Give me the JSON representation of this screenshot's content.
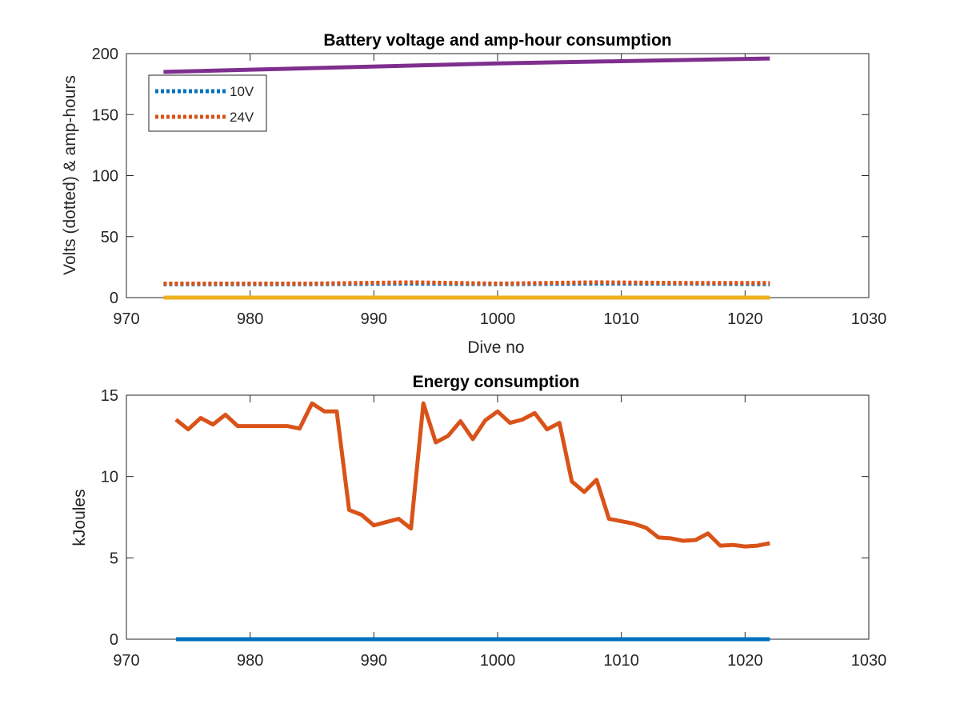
{
  "chart_data": [
    {
      "type": "line",
      "title": "Battery voltage and amp-hour consumption",
      "xlabel": "Dive no",
      "ylabel": "Volts (dotted) & amp-hours",
      "xlim": [
        970,
        1030
      ],
      "ylim": [
        0,
        200
      ],
      "xticks": [
        970,
        980,
        990,
        1000,
        1010,
        1020,
        1030
      ],
      "yticks": [
        0,
        50,
        100,
        150,
        200
      ],
      "legend_position": "top-left",
      "series": [
        {
          "name": "10V",
          "color": "#0072BD",
          "style": "dotted",
          "x": [
            973,
            985,
            993,
            1000,
            1008,
            1015,
            1022
          ],
          "y": [
            11,
            11,
            11.5,
            11,
            11.5,
            11.5,
            11
          ]
        },
        {
          "name": "24V",
          "color": "#D95319",
          "style": "dotted",
          "x": [
            973,
            985,
            993,
            1000,
            1008,
            1015,
            1022
          ],
          "y": [
            11.5,
            11.5,
            12.5,
            11.5,
            12.5,
            12,
            12
          ]
        },
        {
          "color": "#EDB120",
          "style": "solid",
          "x": [
            973,
            1022
          ],
          "y": [
            0,
            0
          ]
        },
        {
          "color": "#7E2F8E",
          "style": "solid",
          "x": [
            973,
            1000,
            1022
          ],
          "y": [
            185,
            192,
            196
          ]
        }
      ]
    },
    {
      "type": "line",
      "title": "Energy consumption",
      "xlabel": "",
      "ylabel": "kJoules",
      "xlim": [
        970,
        1030
      ],
      "ylim": [
        0,
        15
      ],
      "xticks": [
        970,
        980,
        990,
        1000,
        1010,
        1020,
        1030
      ],
      "yticks": [
        0,
        5,
        10,
        15
      ],
      "series": [
        {
          "color": "#0072BD",
          "style": "solid",
          "x": [
            974,
            1022
          ],
          "y": [
            0,
            0
          ]
        },
        {
          "color": "#D95319",
          "style": "solid",
          "x": [
            974,
            975,
            976,
            977,
            978,
            979,
            980,
            981,
            982,
            983,
            984,
            985,
            986,
            987,
            988,
            989,
            990,
            991,
            992,
            993,
            994,
            995,
            996,
            997,
            998,
            999,
            1000,
            1001,
            1002,
            1003,
            1004,
            1005,
            1006,
            1007,
            1008,
            1009,
            1010,
            1011,
            1012,
            1013,
            1014,
            1015,
            1016,
            1017,
            1018,
            1019,
            1020,
            1021,
            1022
          ],
          "y": [
            13.5,
            12.9,
            13.6,
            13.2,
            13.8,
            13.1,
            13.1,
            13.1,
            13.1,
            13.1,
            12.95,
            14.5,
            14.0,
            14.0,
            7.95,
            7.65,
            7.0,
            7.2,
            7.4,
            6.8,
            14.5,
            12.1,
            12.5,
            13.4,
            12.3,
            13.45,
            14.0,
            13.3,
            13.5,
            13.9,
            12.9,
            13.3,
            9.7,
            9.05,
            9.8,
            7.4,
            7.25,
            7.1,
            6.85,
            6.25,
            6.2,
            6.05,
            6.1,
            6.5,
            5.75,
            5.8,
            5.7,
            5.75,
            5.9
          ]
        }
      ]
    }
  ]
}
